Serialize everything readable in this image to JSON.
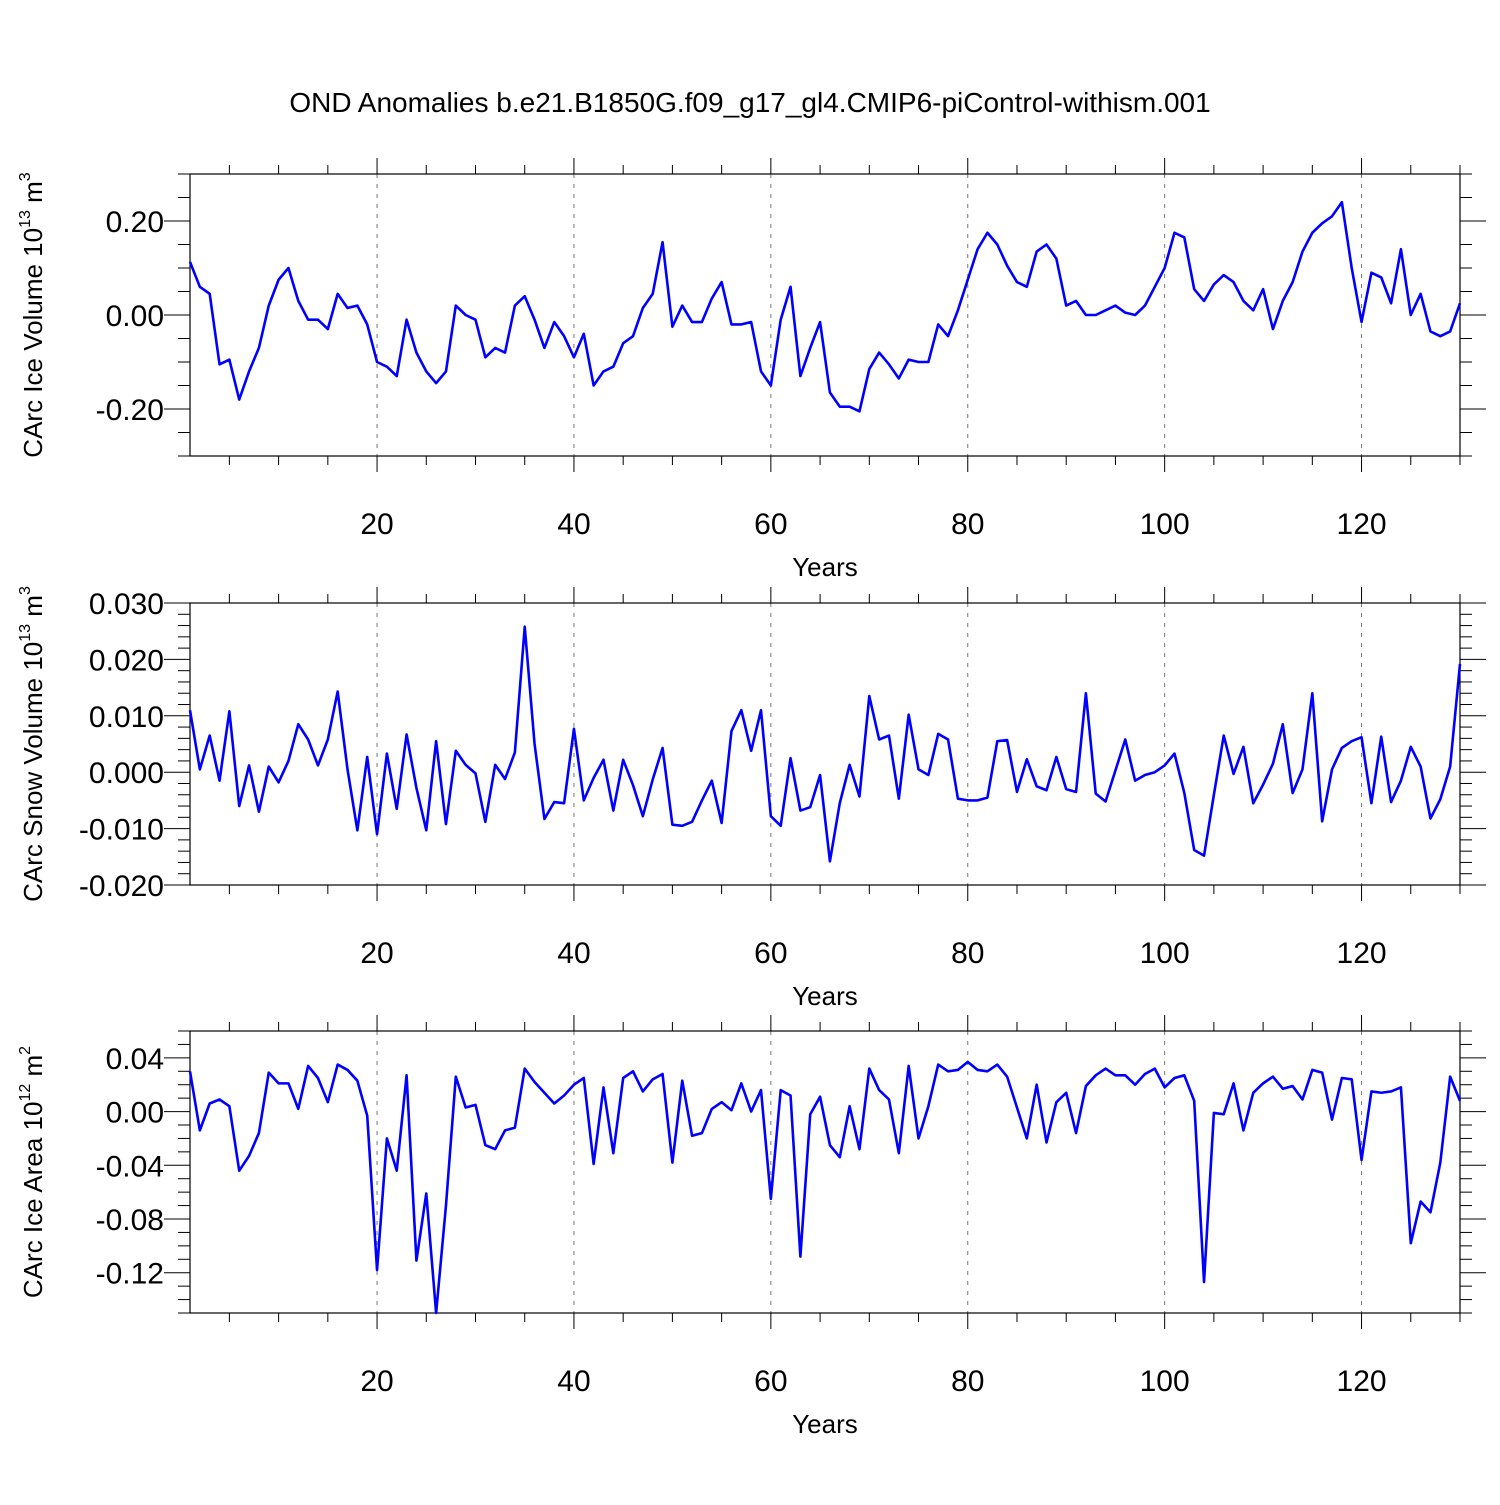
{
  "title": "OND Anomalies b.e21.B1850G.f09_g17_gl4.CMIP6-piControl-withism.001",
  "chart_data": [
    {
      "type": "line",
      "xlabel": "Years",
      "ylabel_main": "CArc Ice Volume 10",
      "ylabel_exp": "13",
      "ylabel_unit": " m",
      "ylabel_unit_exp": "3",
      "xlim": [
        1,
        130
      ],
      "ylim": [
        -0.3,
        0.3
      ],
      "x_ticks": [
        20,
        40,
        60,
        80,
        100,
        120
      ],
      "x_tick_labels": [
        "20",
        "40",
        "60",
        "80",
        "100",
        "120"
      ],
      "y_ticks": [
        -0.2,
        0.0,
        0.2
      ],
      "y_tick_labels": [
        "-0.20",
        "0.00",
        "0.20"
      ],
      "y_minor_step": 0.05,
      "grid": "dashed vertical at major x ticks",
      "color": "#0000ff",
      "values": [
        0.113,
        0.06,
        0.045,
        -0.105,
        -0.095,
        -0.18,
        -0.12,
        -0.07,
        0.02,
        0.075,
        0.1,
        0.03,
        -0.01,
        -0.01,
        -0.03,
        0.045,
        0.015,
        0.02,
        -0.02,
        -0.1,
        -0.11,
        -0.13,
        -0.01,
        -0.08,
        -0.12,
        -0.145,
        -0.12,
        0.02,
        0.0,
        -0.01,
        -0.09,
        -0.07,
        -0.08,
        0.02,
        0.04,
        -0.01,
        -0.07,
        -0.015,
        -0.045,
        -0.09,
        -0.04,
        -0.15,
        -0.12,
        -0.11,
        -0.06,
        -0.045,
        0.015,
        0.045,
        0.155,
        -0.025,
        0.02,
        -0.015,
        -0.015,
        0.035,
        0.07,
        -0.02,
        -0.02,
        -0.015,
        -0.12,
        -0.15,
        -0.01,
        0.06,
        -0.13,
        -0.07,
        -0.015,
        -0.165,
        -0.195,
        -0.195,
        -0.205,
        -0.115,
        -0.08,
        -0.105,
        -0.135,
        -0.095,
        -0.1,
        -0.1,
        -0.02,
        -0.045,
        0.01,
        0.075,
        0.14,
        0.175,
        0.15,
        0.105,
        0.07,
        0.06,
        0.135,
        0.15,
        0.12,
        0.02,
        0.03,
        0.0,
        0.0,
        0.01,
        0.02,
        0.005,
        0.0,
        0.02,
        0.06,
        0.1,
        0.175,
        0.165,
        0.055,
        0.03,
        0.065,
        0.085,
        0.07,
        0.03,
        0.01,
        0.055,
        -0.03,
        0.03,
        0.07,
        0.135,
        0.175,
        0.195,
        0.21,
        0.24,
        0.1,
        -0.015,
        0.09,
        0.08,
        0.025,
        0.14,
        0.0,
        0.045,
        -0.035,
        -0.045,
        -0.035,
        0.025
      ]
    },
    {
      "type": "line",
      "xlabel": "Years",
      "ylabel_main": "CArc Snow Volume 10",
      "ylabel_exp": "13",
      "ylabel_unit": " m",
      "ylabel_unit_exp": "3",
      "xlim": [
        1,
        130
      ],
      "ylim": [
        -0.02,
        0.03
      ],
      "x_ticks": [
        20,
        40,
        60,
        80,
        100,
        120
      ],
      "x_tick_labels": [
        "20",
        "40",
        "60",
        "80",
        "100",
        "120"
      ],
      "y_ticks": [
        -0.02,
        -0.01,
        0.0,
        0.01,
        0.02,
        0.03
      ],
      "y_tick_labels": [
        "-0.020",
        "-0.010",
        "0.000",
        "0.010",
        "0.020",
        "0.030"
      ],
      "y_minor_step": 0.002,
      "grid": "dashed vertical at major x ticks",
      "color": "#0000ff",
      "values": [
        0.011,
        0.0005,
        0.0065,
        -0.0015,
        0.0108,
        -0.006,
        0.0012,
        -0.007,
        0.001,
        -0.0018,
        0.002,
        0.0085,
        0.0058,
        0.0012,
        0.0058,
        0.0143,
        0.0005,
        -0.0103,
        0.0027,
        -0.011,
        0.0033,
        -0.0065,
        0.0067,
        -0.0028,
        -0.0103,
        0.0055,
        -0.0092,
        0.0038,
        0.0013,
        -0.0002,
        -0.0088,
        0.0013,
        -0.0012,
        0.0035,
        0.0258,
        0.005,
        -0.0083,
        -0.0053,
        -0.0055,
        0.0077,
        -0.005,
        -0.001,
        0.0022,
        -0.0068,
        0.0022,
        -0.0023,
        -0.0078,
        -0.0013,
        0.0043,
        -0.0093,
        -0.0095,
        -0.0088,
        -0.005,
        -0.0015,
        -0.009,
        0.0073,
        0.011,
        0.0038,
        0.011,
        -0.0078,
        -0.0095,
        0.0025,
        -0.0068,
        -0.0062,
        -0.0005,
        -0.0158,
        -0.0055,
        0.0013,
        -0.0043,
        0.0135,
        0.0058,
        0.0065,
        -0.0047,
        0.0102,
        0.0005,
        -0.0005,
        0.0068,
        0.0058,
        -0.0047,
        -0.005,
        -0.005,
        -0.0045,
        0.0055,
        0.0057,
        -0.0035,
        0.0023,
        -0.0025,
        -0.0032,
        0.0027,
        -0.003,
        -0.0035,
        0.014,
        -0.0038,
        -0.0052,
        0.0003,
        0.0058,
        -0.0015,
        -0.0005,
        0.0,
        0.0012,
        0.0033,
        -0.0037,
        -0.0138,
        -0.0148,
        -0.004,
        0.0065,
        -0.0003,
        0.0045,
        -0.0055,
        -0.0022,
        0.0015,
        0.0085,
        -0.0037,
        0.0005,
        0.014,
        -0.0087,
        0.0005,
        0.0043,
        0.0055,
        0.0062,
        -0.0055,
        0.0063,
        -0.0053,
        -0.0015,
        0.0045,
        0.001,
        -0.0082,
        -0.0048,
        0.001,
        0.0192
      ]
    },
    {
      "type": "line",
      "xlabel": "Years",
      "ylabel_main": "CArc Ice Area 10",
      "ylabel_exp": "12",
      "ylabel_unit": " m",
      "ylabel_unit_exp": "2",
      "xlim": [
        1,
        130
      ],
      "ylim": [
        -0.15,
        0.06
      ],
      "x_ticks": [
        20,
        40,
        60,
        80,
        100,
        120
      ],
      "x_tick_labels": [
        "20",
        "40",
        "60",
        "80",
        "100",
        "120"
      ],
      "y_ticks": [
        -0.12,
        -0.08,
        -0.04,
        0.0,
        0.04
      ],
      "y_tick_labels": [
        "-0.12",
        "-0.08",
        "-0.04",
        "0.00",
        "0.04"
      ],
      "y_minor_step": 0.01,
      "grid": "dashed vertical at major x ticks",
      "color": "#0000ff",
      "values": [
        0.03,
        -0.014,
        0.006,
        0.009,
        0.004,
        -0.044,
        -0.033,
        -0.016,
        0.029,
        0.021,
        0.021,
        0.002,
        0.034,
        0.025,
        0.007,
        0.035,
        0.031,
        0.023,
        -0.003,
        -0.118,
        -0.02,
        -0.044,
        0.027,
        -0.111,
        -0.061,
        -0.15,
        -0.07,
        0.026,
        0.003,
        0.005,
        -0.025,
        -0.028,
        -0.014,
        -0.012,
        0.032,
        0.022,
        0.014,
        0.006,
        0.012,
        0.02,
        0.025,
        -0.039,
        0.018,
        -0.031,
        0.025,
        0.03,
        0.015,
        0.024,
        0.028,
        -0.038,
        0.023,
        -0.018,
        -0.016,
        0.002,
        0.007,
        0.001,
        0.021,
        0.0,
        0.016,
        -0.065,
        0.016,
        0.012,
        -0.108,
        -0.002,
        0.011,
        -0.025,
        -0.034,
        0.004,
        -0.028,
        0.032,
        0.016,
        0.009,
        -0.031,
        0.034,
        -0.02,
        0.004,
        0.035,
        0.03,
        0.031,
        0.037,
        0.031,
        0.03,
        0.035,
        0.026,
        0.003,
        -0.02,
        0.02,
        -0.023,
        0.007,
        0.014,
        -0.016,
        0.019,
        0.027,
        0.032,
        0.027,
        0.027,
        0.02,
        0.028,
        0.032,
        0.018,
        0.025,
        0.027,
        0.008,
        -0.127,
        -0.001,
        -0.002,
        0.021,
        -0.014,
        0.014,
        0.021,
        0.026,
        0.017,
        0.019,
        0.009,
        0.031,
        0.029,
        -0.006,
        0.025,
        0.024,
        -0.036,
        0.015,
        0.014,
        0.015,
        0.018,
        -0.098,
        -0.067,
        -0.075,
        -0.038,
        0.026,
        0.008
      ]
    }
  ]
}
